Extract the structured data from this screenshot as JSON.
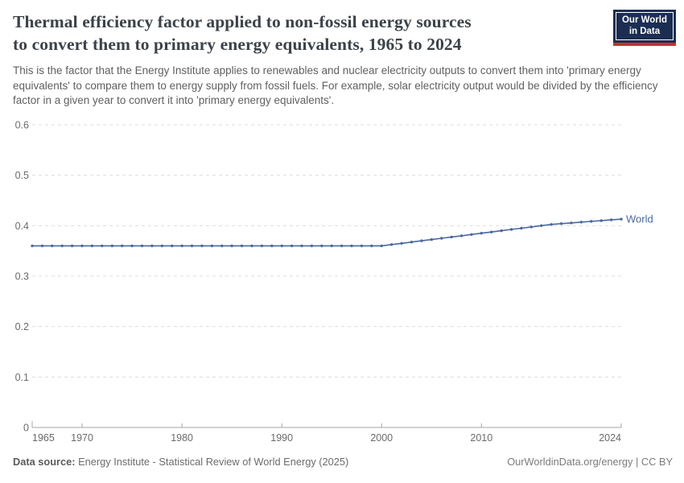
{
  "header": {
    "title_lines": [
      "Thermal efficiency factor applied to non-fossil energy sources",
      "to convert them to primary energy equivalents, 1965 to 2024"
    ],
    "subtitle": "This is the factor that the Energy Institute applies to renewables and nuclear electricity outputs to convert them into 'primary energy equivalents' to compare them to energy supply from fossil fuels. For example, solar electricity output would be divided by the efficiency factor in a given year to convert it into 'primary energy equivalents'.",
    "logo": {
      "line1": "Our World",
      "line2": "in Data"
    }
  },
  "chart_data": {
    "type": "line",
    "title": "Thermal efficiency factor applied to non-fossil energy sources to convert them to primary energy equivalents, 1965 to 2024",
    "xlabel": "",
    "ylabel": "",
    "xlim": [
      1965,
      2024
    ],
    "ylim": [
      0,
      0.6
    ],
    "x_ticks": [
      1965,
      1970,
      1980,
      1990,
      2000,
      2010,
      2024
    ],
    "y_ticks": [
      0,
      0.1,
      0.2,
      0.3,
      0.4,
      0.5,
      0.6
    ],
    "grid": "horizontal-dashed",
    "legend_position": "end-of-line-label",
    "series": [
      {
        "name": "World",
        "color": "#4a68a1",
        "years": [
          1965,
          1966,
          1967,
          1968,
          1969,
          1970,
          1971,
          1972,
          1973,
          1974,
          1975,
          1976,
          1977,
          1978,
          1979,
          1980,
          1981,
          1982,
          1983,
          1984,
          1985,
          1986,
          1987,
          1988,
          1989,
          1990,
          1991,
          1992,
          1993,
          1994,
          1995,
          1996,
          1997,
          1998,
          1999,
          2000,
          2001,
          2002,
          2003,
          2004,
          2005,
          2006,
          2007,
          2008,
          2009,
          2010,
          2011,
          2012,
          2013,
          2014,
          2015,
          2016,
          2017,
          2018,
          2019,
          2020,
          2021,
          2022,
          2023,
          2024
        ],
        "values": [
          0.36,
          0.36,
          0.36,
          0.36,
          0.36,
          0.36,
          0.36,
          0.36,
          0.36,
          0.36,
          0.36,
          0.36,
          0.36,
          0.36,
          0.36,
          0.36,
          0.36,
          0.36,
          0.36,
          0.36,
          0.36,
          0.36,
          0.36,
          0.36,
          0.36,
          0.36,
          0.36,
          0.36,
          0.36,
          0.36,
          0.36,
          0.36,
          0.36,
          0.36,
          0.36,
          0.36,
          0.3625,
          0.365,
          0.3675,
          0.37,
          0.3725,
          0.375,
          0.3775,
          0.38,
          0.3825,
          0.385,
          0.3875,
          0.39,
          0.3925,
          0.395,
          0.3975,
          0.4,
          0.4025,
          0.404,
          0.4055,
          0.407,
          0.4085,
          0.41,
          0.4115,
          0.413
        ]
      }
    ]
  },
  "footer": {
    "source_label": "Data source:",
    "source_text": " Energy Institute - Statistical Review of World Energy (2025)",
    "url_text": "OurWorldinData.org/energy | CC BY"
  },
  "colors": {
    "series_blue": "#4a68a1",
    "grid": "#dddddd",
    "axis": "#a5a5a5",
    "axis_text": "#6b6b6b",
    "logo_bg": "#1b2e52",
    "logo_red": "#c0342b"
  }
}
